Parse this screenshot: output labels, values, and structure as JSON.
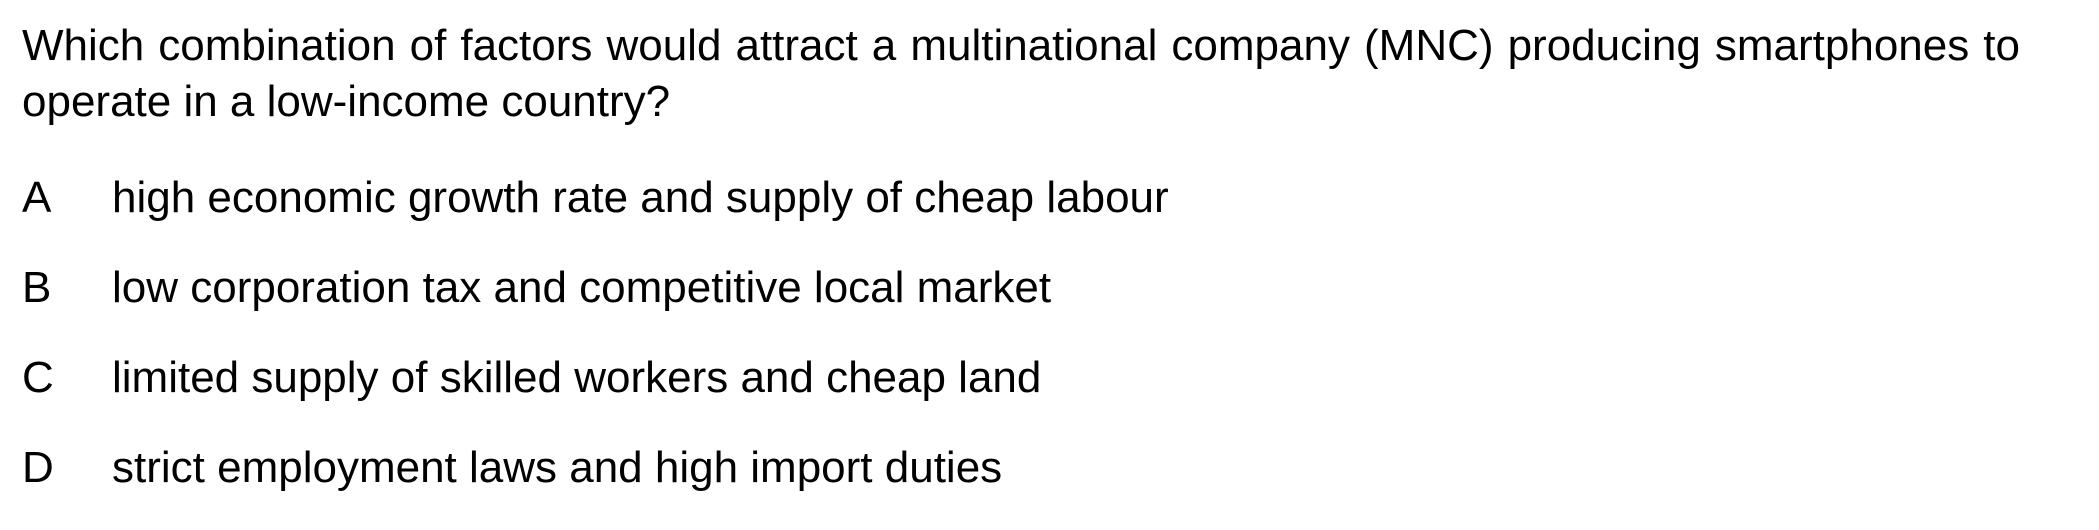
{
  "question": {
    "text": "Which combination of factors would attract a multinational company (MNC) producing smartphones to operate in a low-income country?"
  },
  "options": [
    {
      "letter": "A",
      "text": "high economic growth rate and supply of cheap labour"
    },
    {
      "letter": "B",
      "text": "low corporation tax and competitive local market"
    },
    {
      "letter": "C",
      "text": "limited supply of skilled workers and cheap land"
    },
    {
      "letter": "D",
      "text": "strict employment laws and high import duties"
    }
  ]
}
